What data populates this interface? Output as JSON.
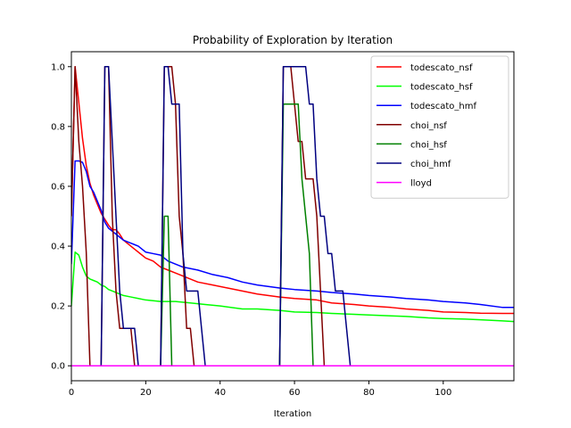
{
  "chart_data": {
    "type": "line",
    "title": "Probability of Exploration by Iteration",
    "xlabel": "Iteration",
    "ylabel": "",
    "xlim": [
      0,
      119
    ],
    "ylim": [
      -0.05,
      1.05
    ],
    "x_ticks": [
      0,
      20,
      40,
      60,
      80,
      100
    ],
    "x_tick_labels": [
      "0",
      "20",
      "40",
      "60",
      "80",
      "100"
    ],
    "y_ticks": [
      0.0,
      0.2,
      0.4,
      0.6,
      0.8,
      1.0
    ],
    "y_tick_labels": [
      "0.0",
      "0.2",
      "0.4",
      "0.6",
      "0.8",
      "1.0"
    ],
    "grid": false,
    "legend_position": "top-right",
    "series": [
      {
        "name": "todescato_nsf",
        "color": "#ff0000",
        "x": [
          0,
          1,
          2,
          3,
          4,
          5,
          6,
          7,
          8,
          9,
          10,
          11,
          12,
          13,
          14,
          15,
          16,
          17,
          18,
          19,
          20,
          22,
          24,
          26,
          28,
          30,
          34,
          38,
          42,
          46,
          50,
          56,
          60,
          66,
          70,
          76,
          80,
          86,
          90,
          96,
          100,
          106,
          110,
          116,
          119
        ],
        "y": [
          0.5,
          1.0,
          0.88,
          0.76,
          0.67,
          0.61,
          0.57,
          0.54,
          0.51,
          0.49,
          0.47,
          0.455,
          0.455,
          0.44,
          0.42,
          0.41,
          0.4,
          0.39,
          0.38,
          0.37,
          0.36,
          0.35,
          0.33,
          0.32,
          0.31,
          0.3,
          0.28,
          0.27,
          0.26,
          0.25,
          0.24,
          0.23,
          0.225,
          0.22,
          0.21,
          0.205,
          0.2,
          0.195,
          0.19,
          0.185,
          0.18,
          0.178,
          0.176,
          0.175,
          0.175
        ]
      },
      {
        "name": "todescato_hsf",
        "color": "#00ff00",
        "x": [
          0,
          1,
          2,
          3,
          4,
          5,
          6,
          7,
          8,
          9,
          10,
          12,
          14,
          16,
          18,
          20,
          24,
          28,
          32,
          36,
          40,
          46,
          50,
          56,
          60,
          66,
          70,
          76,
          80,
          86,
          90,
          96,
          100,
          106,
          110,
          116,
          119
        ],
        "y": [
          0.2,
          0.38,
          0.37,
          0.33,
          0.3,
          0.29,
          0.285,
          0.28,
          0.27,
          0.265,
          0.255,
          0.245,
          0.235,
          0.23,
          0.225,
          0.22,
          0.215,
          0.215,
          0.21,
          0.205,
          0.2,
          0.19,
          0.19,
          0.185,
          0.18,
          0.178,
          0.175,
          0.172,
          0.17,
          0.167,
          0.165,
          0.16,
          0.158,
          0.156,
          0.154,
          0.15,
          0.148
        ]
      },
      {
        "name": "todescato_hmf",
        "color": "#0000ff",
        "x": [
          0,
          1,
          2,
          3,
          4,
          5,
          6,
          7,
          8,
          9,
          10,
          11,
          12,
          13,
          14,
          15,
          16,
          17,
          18,
          19,
          20,
          22,
          24,
          26,
          28,
          30,
          34,
          38,
          42,
          46,
          50,
          56,
          60,
          66,
          70,
          76,
          80,
          86,
          90,
          96,
          100,
          106,
          110,
          116,
          119
        ],
        "y": [
          0.34,
          0.685,
          0.685,
          0.68,
          0.65,
          0.6,
          0.58,
          0.55,
          0.52,
          0.48,
          0.46,
          0.45,
          0.44,
          0.43,
          0.42,
          0.415,
          0.41,
          0.405,
          0.4,
          0.39,
          0.38,
          0.375,
          0.37,
          0.35,
          0.34,
          0.33,
          0.32,
          0.305,
          0.295,
          0.28,
          0.27,
          0.26,
          0.255,
          0.25,
          0.245,
          0.24,
          0.235,
          0.23,
          0.225,
          0.22,
          0.215,
          0.21,
          0.205,
          0.195,
          0.195
        ]
      },
      {
        "name": "choi_nsf",
        "color": "#800000",
        "x": [
          0,
          1,
          2,
          3,
          4,
          5,
          6,
          8,
          9,
          10,
          11,
          12,
          13,
          14,
          16,
          17,
          24,
          25,
          26,
          27,
          28,
          29,
          30,
          31,
          32,
          33,
          34,
          56,
          57,
          58,
          59,
          60,
          61,
          62,
          63,
          64,
          65,
          66,
          67,
          68,
          69,
          70,
          119
        ],
        "y": [
          0.5,
          1.0,
          0.75,
          0.6,
          0.38,
          0.0,
          0.0,
          0.0,
          1.0,
          1.0,
          0.5,
          0.25,
          0.125,
          0.125,
          0.125,
          0.0,
          0.0,
          1.0,
          1.0,
          1.0,
          0.875,
          0.5,
          0.375,
          0.125,
          0.125,
          0.0,
          0.0,
          0.0,
          1.0,
          1.0,
          1.0,
          0.875,
          0.75,
          0.75,
          0.625,
          0.625,
          0.625,
          0.5,
          0.25,
          0.0,
          0.0,
          0.0,
          0.0
        ]
      },
      {
        "name": "choi_hsf",
        "color": "#008000",
        "x": [
          0,
          24,
          25,
          26,
          27,
          28,
          56,
          57,
          58,
          59,
          60,
          61,
          62,
          63,
          64,
          65,
          119
        ],
        "y": [
          0.0,
          0.0,
          0.5,
          0.5,
          0.0,
          0.0,
          0.0,
          0.875,
          0.875,
          0.875,
          0.875,
          0.875,
          0.625,
          0.5,
          0.375,
          0.0,
          0.0
        ]
      },
      {
        "name": "choi_hmf",
        "color": "#000080",
        "x": [
          0,
          8,
          9,
          10,
          11,
          12,
          13,
          14,
          15,
          16,
          17,
          18,
          19,
          24,
          25,
          26,
          27,
          28,
          29,
          30,
          31,
          32,
          33,
          34,
          35,
          36,
          37,
          38,
          56,
          57,
          58,
          59,
          60,
          61,
          62,
          63,
          64,
          65,
          66,
          67,
          68,
          69,
          70,
          71,
          72,
          73,
          74,
          75,
          76,
          119
        ],
        "y": [
          0.0,
          0.0,
          1.0,
          1.0,
          0.75,
          0.5,
          0.25,
          0.125,
          0.125,
          0.125,
          0.125,
          0.0,
          0.0,
          0.0,
          1.0,
          1.0,
          0.875,
          0.875,
          0.875,
          0.375,
          0.25,
          0.25,
          0.25,
          0.25,
          0.125,
          0.0,
          0.0,
          0.0,
          0.0,
          1.0,
          1.0,
          1.0,
          1.0,
          1.0,
          1.0,
          1.0,
          0.875,
          0.875,
          0.625,
          0.5,
          0.5,
          0.375,
          0.375,
          0.25,
          0.25,
          0.25,
          0.125,
          0.0,
          0.0,
          0.0
        ]
      },
      {
        "name": "lloyd",
        "color": "#ff00ff",
        "x": [
          0,
          119
        ],
        "y": [
          0.0,
          0.0
        ]
      }
    ]
  }
}
